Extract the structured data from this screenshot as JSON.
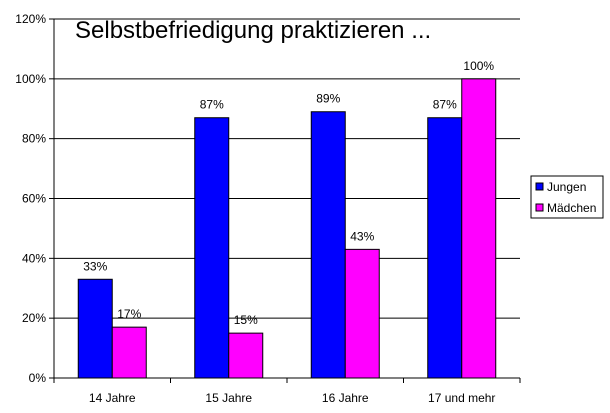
{
  "chart_data": {
    "type": "bar",
    "title": "Selbstbefriedigung praktizieren ...",
    "categories": [
      "14 Jahre",
      "15 Jahre",
      "16 Jahre",
      "17 und mehr"
    ],
    "series": [
      {
        "name": "Jungen",
        "color": "#0000FF",
        "values": [
          33,
          87,
          89,
          87
        ],
        "labels": [
          "33%",
          "87%",
          "89%",
          "87%"
        ]
      },
      {
        "name": "Mädchen",
        "color": "#FF00FF",
        "values": [
          17,
          15,
          43,
          100
        ],
        "labels": [
          "17%",
          "15%",
          "43%",
          "100%"
        ]
      }
    ],
    "ylim": [
      0,
      120
    ],
    "yticks": [
      0,
      20,
      40,
      60,
      80,
      100,
      120
    ],
    "ytick_labels": [
      "0%",
      "20%",
      "40%",
      "60%",
      "80%",
      "100%",
      "120%"
    ],
    "grid": true,
    "legend_position": "right"
  }
}
